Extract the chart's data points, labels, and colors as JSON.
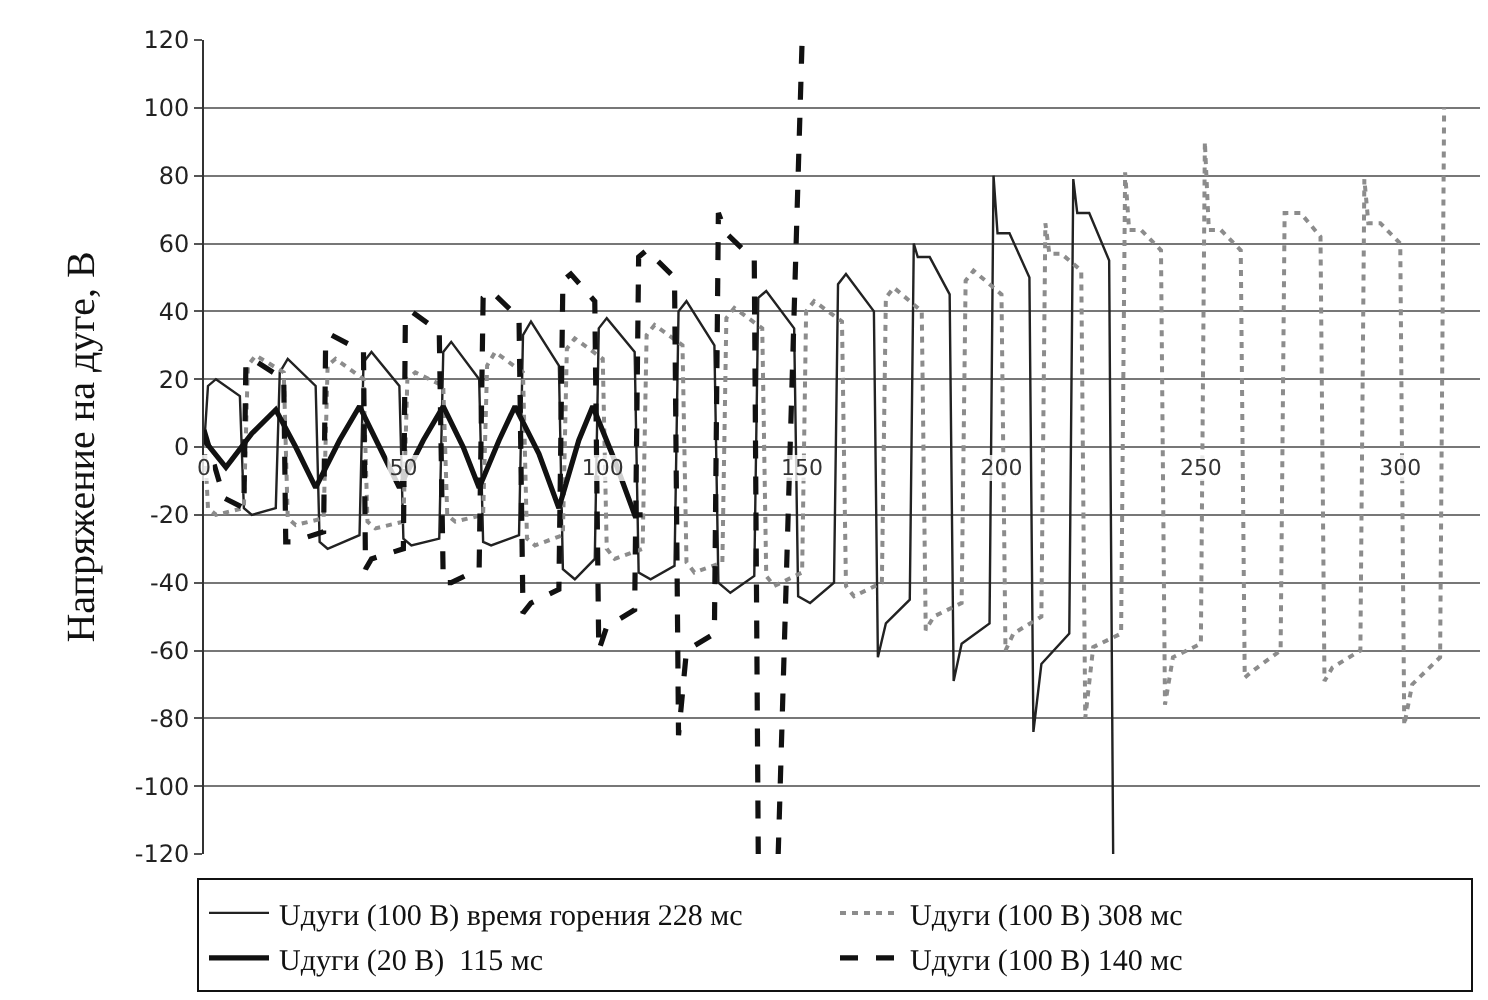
{
  "chart_data": {
    "type": "line",
    "ylabel": "Напряжение на дуге, В",
    "xlim": [
      0,
      320
    ],
    "xticks": [
      0,
      50,
      100,
      150,
      200,
      250,
      300
    ],
    "ylim": [
      -120,
      120
    ],
    "yticks": [
      -120,
      -100,
      -80,
      -60,
      -40,
      -20,
      0,
      20,
      40,
      60,
      80,
      100,
      120
    ],
    "grid": "y",
    "legend": "bottom",
    "series": [
      {
        "name": "Uдуги (100 В) время горения 228 мс",
        "color": "#222222",
        "line_style": "solid",
        "x": [
          0,
          1,
          3,
          9,
          10,
          12,
          18,
          19,
          21,
          28,
          29,
          31,
          39,
          40,
          42,
          49,
          50,
          52,
          59,
          60,
          62,
          69,
          70,
          72,
          79,
          80,
          82,
          89,
          90,
          93,
          98,
          99,
          101,
          108,
          109,
          112,
          118,
          119,
          121,
          128,
          129,
          132,
          138,
          139,
          141,
          148,
          149,
          152,
          158,
          159,
          161,
          168,
          169,
          171,
          177,
          178,
          179,
          182,
          187,
          188,
          190,
          197,
          198,
          199,
          202,
          207,
          208,
          210,
          217,
          218,
          219,
          222,
          227,
          228
        ],
        "values": [
          0,
          18,
          20,
          15,
          -18,
          -20,
          -18,
          22,
          26,
          18,
          -28,
          -30,
          -26,
          25,
          28,
          18,
          -27,
          -29,
          -27,
          28,
          31,
          20,
          -28,
          -29,
          -26,
          33,
          37,
          24,
          -36,
          -39,
          -33,
          35,
          38,
          28,
          -37,
          -39,
          -35,
          40,
          43,
          30,
          -40,
          -43,
          -38,
          44,
          46,
          35,
          -44,
          -46,
          -40,
          48,
          51,
          40,
          -62,
          -52,
          -45,
          60,
          56,
          56,
          45,
          -69,
          -58,
          -52,
          80,
          63,
          63,
          50,
          -84,
          -64,
          -55,
          79,
          69,
          69,
          55,
          -120
        ]
      },
      {
        "name": "Uдуги (100 В) 308 мс",
        "color": "#8c8c8c",
        "line_style": "dotted",
        "x": [
          0,
          1,
          3,
          10,
          11,
          13,
          20,
          21,
          23,
          30,
          31,
          33,
          40,
          41,
          43,
          50,
          51,
          53,
          60,
          61,
          63,
          70,
          71,
          73,
          80,
          81,
          83,
          90,
          91,
          93,
          100,
          101,
          103,
          110,
          111,
          113,
          120,
          121,
          123,
          130,
          131,
          133,
          140,
          141,
          143,
          150,
          151,
          153,
          160,
          161,
          163,
          170,
          171,
          173,
          180,
          181,
          183,
          190,
          191,
          193,
          200,
          201,
          203,
          210,
          211,
          212,
          215,
          220,
          221,
          223,
          230,
          231,
          232,
          235,
          240,
          241,
          243,
          250,
          251,
          252,
          255,
          260,
          261,
          263,
          270,
          271,
          272,
          275,
          280,
          281,
          283,
          290,
          291,
          292,
          295,
          300,
          301,
          303,
          310,
          311
        ],
        "values": [
          5,
          -18,
          -20,
          -18,
          24,
          27,
          22,
          -21,
          -23,
          -21,
          24,
          26,
          20,
          -22,
          -24,
          -22,
          20,
          22,
          18,
          -20,
          -22,
          -20,
          24,
          28,
          22,
          -27,
          -29,
          -26,
          29,
          32,
          26,
          -30,
          -33,
          -30,
          33,
          36,
          30,
          -34,
          -37,
          -34,
          38,
          41,
          35,
          -38,
          -41,
          -37,
          40,
          43,
          37,
          -41,
          -44,
          -40,
          44,
          47,
          40,
          -54,
          -50,
          -46,
          49,
          52,
          45,
          -60,
          -55,
          -50,
          66,
          57,
          57,
          52,
          -80,
          -59,
          -55,
          81,
          64,
          64,
          58,
          -76,
          -62,
          -58,
          90,
          64,
          64,
          58,
          -68,
          -66,
          -60,
          69,
          69,
          69,
          62,
          -69,
          -65,
          -60,
          79,
          66,
          66,
          60,
          -82,
          -70,
          -62,
          100
        ]
      },
      {
        "name": "Uдуги (20 В)  115 мс",
        "color": "#111111",
        "line_style": "solid",
        "x": [
          0,
          5.5,
          12,
          18,
          23,
          28,
          34,
          39,
          44,
          49,
          55,
          60,
          65,
          69,
          74,
          78,
          84,
          89,
          94,
          97.5,
          103,
          108,
          110
        ],
        "values": [
          2,
          -6,
          4,
          11,
          0,
          -12,
          2,
          12,
          0,
          -12,
          2,
          12,
          0,
          -12,
          2,
          12,
          -2,
          -18,
          2,
          12,
          -4,
          -20,
          -20
        ]
      },
      {
        "name": "Uдуги (100 В) 140 мс",
        "color": "#111111",
        "line_style": "dashed",
        "x": [
          0,
          5,
          10,
          10.5,
          12,
          20,
          20.5,
          22,
          30,
          30.5,
          32,
          40,
          40.5,
          42,
          50,
          50.5,
          52,
          59,
          60,
          62,
          69,
          70,
          72,
          79,
          80,
          82,
          89,
          90,
          92,
          98,
          99,
          101,
          108,
          109,
          111,
          118,
          119,
          121,
          128,
          129,
          131,
          138,
          139,
          144,
          150
        ],
        "values": [
          5,
          -15,
          -18,
          24,
          26,
          20,
          -28,
          -28,
          -25,
          31,
          33,
          28,
          -36,
          -33,
          -30,
          38,
          40,
          34,
          -40,
          -40,
          -36,
          44,
          46,
          38,
          -49,
          -46,
          -42,
          49,
          51,
          43,
          -60,
          -53,
          -48,
          56,
          58,
          50,
          -85,
          -60,
          -55,
          69,
          63,
          55,
          -120,
          -120,
          120
        ]
      }
    ]
  }
}
